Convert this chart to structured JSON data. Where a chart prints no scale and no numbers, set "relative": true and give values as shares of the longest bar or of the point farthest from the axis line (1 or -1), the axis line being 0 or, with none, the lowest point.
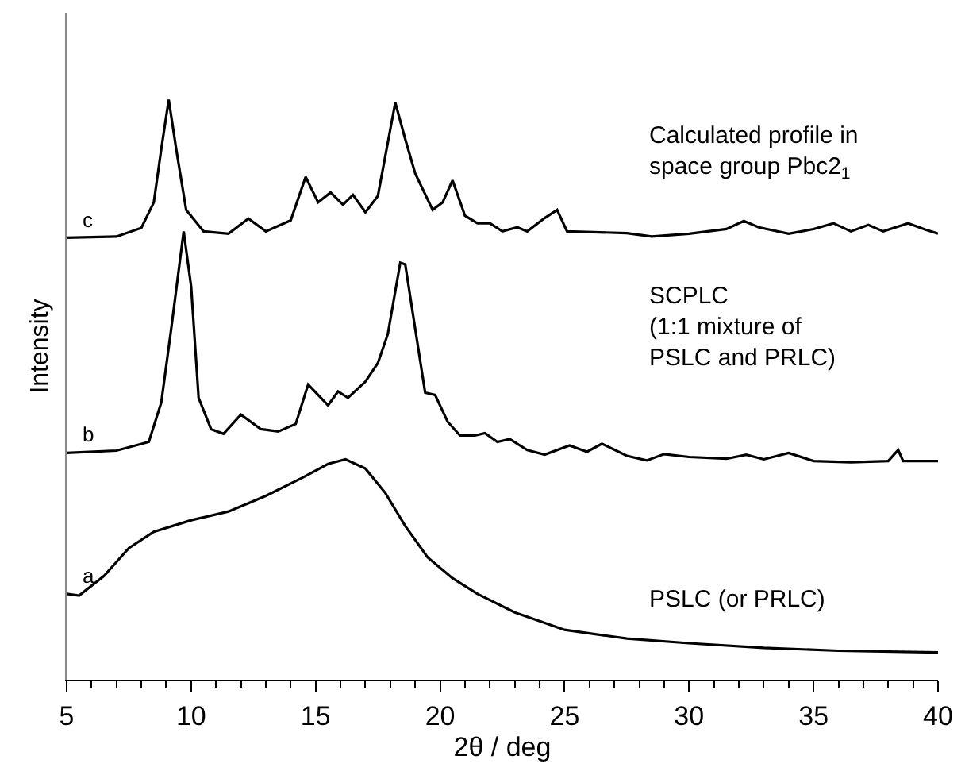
{
  "chart_data": {
    "type": "line",
    "relative": true,
    "xlabel": "2θ / deg",
    "ylabel": "Intensity",
    "legend": false,
    "grid": false,
    "xlim": [
      5,
      40
    ],
    "xticks": [
      5,
      {
        "value": 6,
        "label": null
      },
      {
        "value": 7,
        "label": null
      },
      {
        "value": 8,
        "label": null
      },
      {
        "value": 9,
        "label": null
      },
      10,
      {
        "value": 11,
        "label": null
      },
      {
        "value": 12,
        "label": null
      },
      {
        "value": 13,
        "label": null
      },
      {
        "value": 14,
        "label": null
      },
      15,
      {
        "value": 16,
        "label": null
      },
      {
        "value": 17,
        "label": null
      },
      {
        "value": 18,
        "label": null
      },
      {
        "value": 19,
        "label": null
      },
      20,
      {
        "value": 21,
        "label": null
      },
      {
        "value": 22,
        "label": null
      },
      {
        "value": 23,
        "label": null
      },
      {
        "value": 24,
        "label": null
      },
      25,
      {
        "value": 26,
        "label": null
      },
      {
        "value": 27,
        "label": null
      },
      {
        "value": 28,
        "label": null
      },
      {
        "value": 29,
        "label": null
      },
      30,
      {
        "value": 31,
        "label": null
      },
      {
        "value": 32,
        "label": null
      },
      {
        "value": 33,
        "label": null
      },
      {
        "value": 34,
        "label": null
      },
      35,
      {
        "value": 36,
        "label": null
      },
      {
        "value": 37,
        "label": null
      },
      {
        "value": 38,
        "label": null
      },
      {
        "value": 39,
        "label": null
      },
      40
    ],
    "tick_labels": "x",
    "series": [
      {
        "name": "c",
        "color": "#000000",
        "x": [
          5,
          7,
          8,
          8.5,
          8.8,
          9.1,
          9.4,
          9.8,
          10.5,
          11.5,
          12.3,
          13,
          14,
          14.6,
          15.1,
          15.6,
          16.1,
          16.5,
          17,
          17.5,
          18.2,
          18.6,
          19,
          19.7,
          20.1,
          20.5,
          21,
          21.5,
          22,
          22.5,
          23.1,
          23.5,
          24.2,
          24.7,
          25.1,
          27.5,
          28.5,
          30,
          31.5,
          32.2,
          32.8,
          34,
          35,
          35.8,
          36.5,
          37.2,
          37.8,
          38.8,
          39.5,
          40
        ],
        "values": [
          0.762,
          0.764,
          0.779,
          0.823,
          0.915,
          1.0,
          0.915,
          0.81,
          0.773,
          0.769,
          0.795,
          0.773,
          0.792,
          0.867,
          0.823,
          0.84,
          0.819,
          0.836,
          0.806,
          0.834,
          0.995,
          0.932,
          0.873,
          0.81,
          0.823,
          0.861,
          0.8,
          0.787,
          0.787,
          0.773,
          0.78,
          0.773,
          0.796,
          0.81,
          0.773,
          0.77,
          0.764,
          0.769,
          0.777,
          0.791,
          0.78,
          0.769,
          0.777,
          0.787,
          0.773,
          0.784,
          0.773,
          0.787,
          0.776,
          0.769
        ]
      },
      {
        "name": "b",
        "color": "#000000",
        "x": [
          5,
          7,
          8.3,
          8.8,
          9.2,
          9.7,
          10,
          10.3,
          10.8,
          11.3,
          12,
          12.8,
          13.5,
          14.2,
          14.7,
          15.1,
          15.5,
          15.9,
          16.3,
          17,
          17.5,
          17.9,
          18.4,
          18.6,
          19,
          19.4,
          19.8,
          20.3,
          20.8,
          21.4,
          21.8,
          22.3,
          22.8,
          23.5,
          24.2,
          25.2,
          25.9,
          26.5,
          27.5,
          28.3,
          29,
          30,
          31.5,
          32.3,
          33,
          34,
          35,
          36.5,
          38,
          38.4,
          38.6,
          40
        ],
        "values": [
          0.391,
          0.395,
          0.41,
          0.478,
          0.605,
          0.773,
          0.678,
          0.486,
          0.432,
          0.424,
          0.457,
          0.432,
          0.428,
          0.441,
          0.509,
          0.491,
          0.473,
          0.497,
          0.486,
          0.514,
          0.546,
          0.596,
          0.719,
          0.716,
          0.605,
          0.495,
          0.491,
          0.445,
          0.421,
          0.421,
          0.425,
          0.41,
          0.415,
          0.396,
          0.388,
          0.404,
          0.393,
          0.407,
          0.386,
          0.378,
          0.389,
          0.384,
          0.381,
          0.388,
          0.38,
          0.391,
          0.377,
          0.375,
          0.377,
          0.396,
          0.377,
          0.377
        ]
      },
      {
        "name": "a",
        "color": "#000000",
        "x": [
          5,
          5.5,
          6.5,
          7.5,
          8.5,
          10,
          11.5,
          13,
          14.5,
          15.5,
          16.2,
          17,
          17.8,
          18.6,
          19.5,
          20.5,
          21.5,
          23,
          25,
          27.5,
          30,
          33,
          36,
          40
        ],
        "values": [
          0.148,
          0.145,
          0.179,
          0.227,
          0.255,
          0.275,
          0.29,
          0.317,
          0.349,
          0.372,
          0.38,
          0.364,
          0.322,
          0.265,
          0.211,
          0.175,
          0.148,
          0.116,
          0.086,
          0.071,
          0.063,
          0.055,
          0.05,
          0.047
        ]
      }
    ],
    "annotations": [
      "Calculated profile in\nspace group Pbc2$_{1}$",
      "SCPLC\n(1:1 mixture of\nPSLC and PRLC)",
      "PSLC (or PRLC)"
    ]
  }
}
